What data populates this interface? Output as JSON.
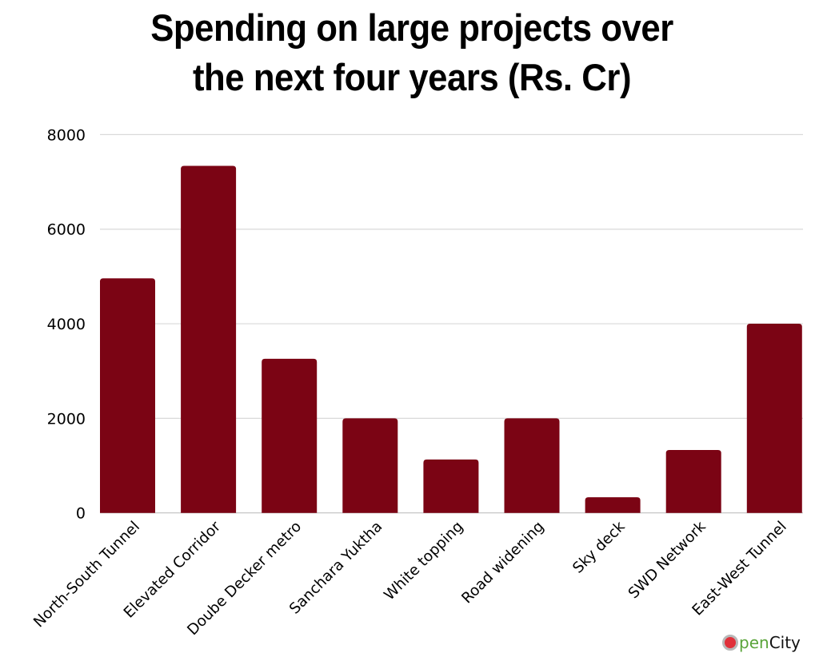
{
  "chart_data": {
    "type": "bar",
    "title": "Spending on large projects over the next four years (Rs. Cr)",
    "title_lines": [
      "Spending on large projects over",
      "the next four years (Rs. Cr)"
    ],
    "xlabel": "",
    "ylabel": "",
    "categories": [
      "North-South Tunnel",
      "Elevated Corridor",
      "Doube Decker metro",
      "Sanchara Yuktha",
      "White topping",
      "Road widening",
      "Sky deck",
      "SWD Network",
      "East-West Tunnel"
    ],
    "values": [
      4960,
      7340,
      3260,
      2000,
      1130,
      2000,
      330,
      1330,
      4000
    ],
    "ylim": [
      0,
      8000
    ],
    "yticks": [
      0,
      2000,
      4000,
      6000,
      8000
    ],
    "grid": true,
    "legend": "none",
    "colors": {
      "bar": "#7b0414",
      "grid": "#d9d9d9",
      "axis": "#bfbfbf",
      "text": "#000000"
    }
  },
  "branding": {
    "logo_first": "pen",
    "logo_second": "City",
    "logo_name": "OpenCity"
  }
}
